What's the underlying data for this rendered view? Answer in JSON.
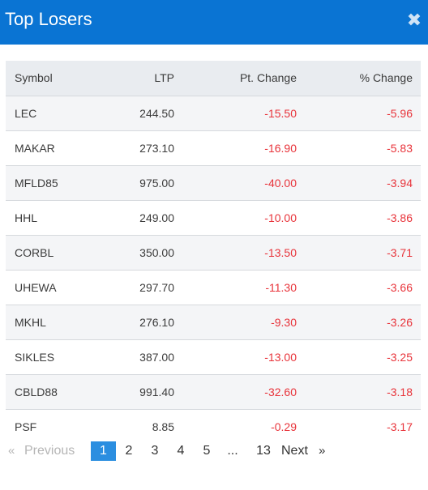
{
  "header": {
    "title": "Top Losers",
    "close_label": "✖"
  },
  "table": {
    "columns": [
      "Symbol",
      "LTP",
      "Pt. Change",
      "% Change"
    ],
    "rows": [
      {
        "symbol": "LEC",
        "ltp": "244.50",
        "pt_change": "-15.50",
        "pct_change": "-5.96"
      },
      {
        "symbol": "MAKAR",
        "ltp": "273.10",
        "pt_change": "-16.90",
        "pct_change": "-5.83"
      },
      {
        "symbol": "MFLD85",
        "ltp": "975.00",
        "pt_change": "-40.00",
        "pct_change": "-3.94"
      },
      {
        "symbol": "HHL",
        "ltp": "249.00",
        "pt_change": "-10.00",
        "pct_change": "-3.86"
      },
      {
        "symbol": "CORBL",
        "ltp": "350.00",
        "pt_change": "-13.50",
        "pct_change": "-3.71"
      },
      {
        "symbol": "UHEWA",
        "ltp": "297.70",
        "pt_change": "-11.30",
        "pct_change": "-3.66"
      },
      {
        "symbol": "MKHL",
        "ltp": "276.10",
        "pt_change": "-9.30",
        "pct_change": "-3.26"
      },
      {
        "symbol": "SIKLES",
        "ltp": "387.00",
        "pt_change": "-13.00",
        "pct_change": "-3.25"
      },
      {
        "symbol": "CBLD88",
        "ltp": "991.40",
        "pt_change": "-32.60",
        "pct_change": "-3.18"
      },
      {
        "symbol": "PSF",
        "ltp": "8.85",
        "pt_change": "-0.29",
        "pct_change": "-3.17"
      }
    ]
  },
  "pagination": {
    "prev_chevron": "«",
    "prev_label": "Previous",
    "pages": [
      "1",
      "2",
      "3",
      "4",
      "5"
    ],
    "ellipsis": "...",
    "last_page": "13",
    "next_label": "Next",
    "next_chevron": "»",
    "active_page": "1"
  },
  "colors": {
    "header_bg": "#0a74d3",
    "negative": "#e8333a",
    "active_page_bg": "#2b8ee0"
  }
}
